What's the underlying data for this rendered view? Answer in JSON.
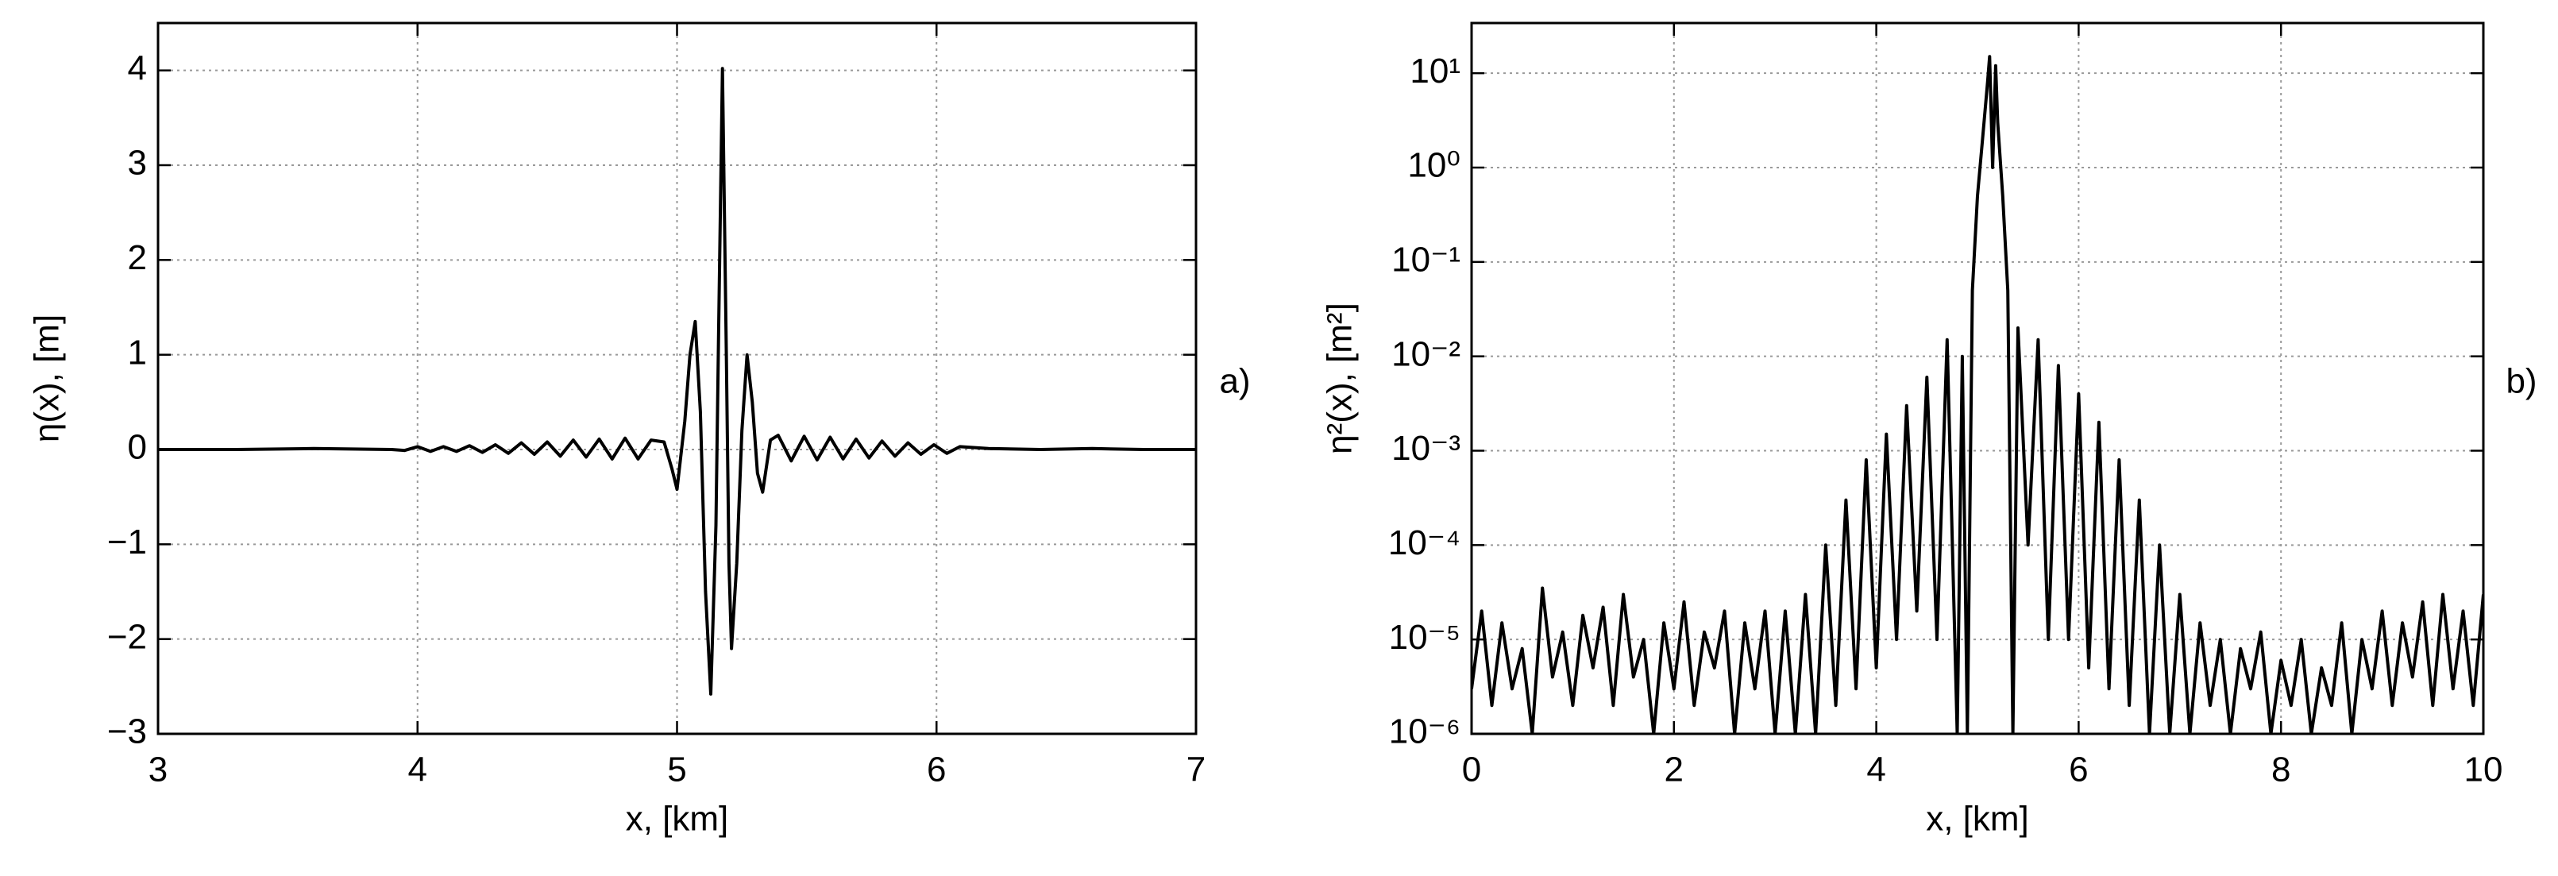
{
  "chart_data": [
    {
      "type": "line",
      "panel_label": "a)",
      "xlabel": "x, [km]",
      "ylabel": "η(x), [m]",
      "color": "#000000",
      "grid": true,
      "log_y": false,
      "xlim": [
        3,
        7
      ],
      "ylim": [
        -3,
        4.5
      ],
      "xticks": [
        3,
        4,
        5,
        6,
        7
      ],
      "yticks": [
        {
          "value": -3,
          "label": "−3"
        },
        {
          "value": -2,
          "label": "−2"
        },
        {
          "value": -1,
          "label": "−1"
        },
        0,
        1,
        2,
        3,
        4
      ],
      "x": [
        3.0,
        3.3,
        3.6,
        3.9,
        3.95,
        4.0,
        4.05,
        4.1,
        4.15,
        4.2,
        4.25,
        4.3,
        4.35,
        4.4,
        4.45,
        4.5,
        4.55,
        4.6,
        4.65,
        4.7,
        4.75,
        4.8,
        4.85,
        4.9,
        4.95,
        4.98,
        5.0,
        5.03,
        5.05,
        5.07,
        5.09,
        5.11,
        5.13,
        5.15,
        5.16,
        5.175,
        5.19,
        5.2,
        5.21,
        5.23,
        5.25,
        5.27,
        5.29,
        5.31,
        5.33,
        5.36,
        5.39,
        5.44,
        5.49,
        5.54,
        5.59,
        5.64,
        5.69,
        5.74,
        5.79,
        5.84,
        5.89,
        5.94,
        5.99,
        6.04,
        6.09,
        6.2,
        6.4,
        6.6,
        6.8,
        7.0
      ],
      "values": [
        0.0,
        0.0,
        0.01,
        0.0,
        -0.01,
        0.03,
        -0.02,
        0.03,
        -0.02,
        0.04,
        -0.03,
        0.05,
        -0.04,
        0.07,
        -0.05,
        0.08,
        -0.07,
        0.1,
        -0.08,
        0.11,
        -0.1,
        0.12,
        -0.1,
        0.1,
        0.08,
        -0.2,
        -0.42,
        0.3,
        1.0,
        1.35,
        0.4,
        -1.5,
        -2.58,
        -0.8,
        1.2,
        4.02,
        1.0,
        -1.2,
        -2.1,
        -1.2,
        0.2,
        1.0,
        0.5,
        -0.25,
        -0.45,
        0.1,
        0.15,
        -0.12,
        0.14,
        -0.11,
        0.13,
        -0.1,
        0.11,
        -0.09,
        0.09,
        -0.07,
        0.07,
        -0.05,
        0.05,
        -0.04,
        0.03,
        0.01,
        0.0,
        0.01,
        0.0,
        0.0
      ]
    },
    {
      "type": "line",
      "panel_label": "b)",
      "xlabel": "x, [km]",
      "ylabel": "η²(x), [m²]",
      "color": "#000000",
      "grid": true,
      "log_y": true,
      "xlim": [
        0,
        10
      ],
      "ylim": [
        1e-06,
        34
      ],
      "xticks": [
        0,
        2,
        4,
        6,
        8,
        10
      ],
      "yticks": [
        {
          "value": 1e-06,
          "label": "10⁻⁶"
        },
        {
          "value": 1e-05,
          "label": "10⁻⁵"
        },
        {
          "value": 0.0001,
          "label": "10⁻⁴"
        },
        {
          "value": 0.001,
          "label": "10⁻³"
        },
        {
          "value": 0.01,
          "label": "10⁻²"
        },
        {
          "value": 0.1,
          "label": "10⁻¹"
        },
        {
          "value": 1,
          "label": "10⁰"
        },
        {
          "value": 10,
          "label": "10¹"
        }
      ],
      "x": [
        0.0,
        0.1,
        0.2,
        0.3,
        0.4,
        0.5,
        0.6,
        0.7,
        0.8,
        0.9,
        1.0,
        1.1,
        1.2,
        1.3,
        1.4,
        1.5,
        1.6,
        1.7,
        1.8,
        1.9,
        2.0,
        2.1,
        2.2,
        2.3,
        2.4,
        2.5,
        2.6,
        2.7,
        2.8,
        2.9,
        3.0,
        3.1,
        3.2,
        3.3,
        3.4,
        3.5,
        3.6,
        3.7,
        3.8,
        3.9,
        4.0,
        4.1,
        4.2,
        4.3,
        4.4,
        4.5,
        4.6,
        4.7,
        4.8,
        4.85,
        4.9,
        4.95,
        5.0,
        5.05,
        5.1,
        5.12,
        5.15,
        5.18,
        5.2,
        5.25,
        5.3,
        5.35,
        5.4,
        5.5,
        5.6,
        5.7,
        5.8,
        5.9,
        6.0,
        6.1,
        6.2,
        6.3,
        6.4,
        6.5,
        6.6,
        6.7,
        6.8,
        6.9,
        7.0,
        7.1,
        7.2,
        7.3,
        7.4,
        7.5,
        7.6,
        7.7,
        7.8,
        7.9,
        8.0,
        8.1,
        8.2,
        8.3,
        8.4,
        8.5,
        8.6,
        8.7,
        8.8,
        8.9,
        9.0,
        9.1,
        9.2,
        9.3,
        9.4,
        9.5,
        9.6,
        9.7,
        9.8,
        9.9,
        10.0
      ],
      "values": [
        3e-06,
        2e-05,
        2e-06,
        1.5e-05,
        3e-06,
        8e-06,
        1e-06,
        3.5e-05,
        4e-06,
        1.2e-05,
        2e-06,
        1.8e-05,
        5e-06,
        2.2e-05,
        2e-06,
        3e-05,
        4e-06,
        1e-05,
        1e-06,
        1.5e-05,
        3e-06,
        2.5e-05,
        2e-06,
        1.2e-05,
        5e-06,
        2e-05,
        1e-06,
        1.5e-05,
        3e-06,
        2e-05,
        1e-06,
        2e-05,
        1e-06,
        3e-05,
        1e-06,
        0.0001,
        2e-06,
        0.0003,
        3e-06,
        0.0008,
        5e-06,
        0.0015,
        1e-05,
        0.003,
        2e-05,
        0.006,
        1e-05,
        0.015,
        1e-06,
        0.01,
        1e-06,
        0.05,
        0.5,
        2,
        8,
        15,
        1,
        12,
        3,
        0.5,
        0.05,
        1e-06,
        0.02,
        0.0001,
        0.015,
        1e-05,
        0.008,
        1e-05,
        0.004,
        5e-06,
        0.002,
        3e-06,
        0.0008,
        2e-06,
        0.0003,
        1e-06,
        0.0001,
        1e-06,
        3e-05,
        1e-06,
        1.5e-05,
        2e-06,
        1e-05,
        1e-06,
        8e-06,
        3e-06,
        1.2e-05,
        1e-06,
        6e-06,
        2e-06,
        1e-05,
        1e-06,
        5e-06,
        2e-06,
        1.5e-05,
        1e-06,
        1e-05,
        3e-06,
        2e-05,
        2e-06,
        1.5e-05,
        4e-06,
        2.5e-05,
        2e-06,
        3e-05,
        3e-06,
        2e-05,
        2e-06,
        3e-05
      ]
    }
  ]
}
